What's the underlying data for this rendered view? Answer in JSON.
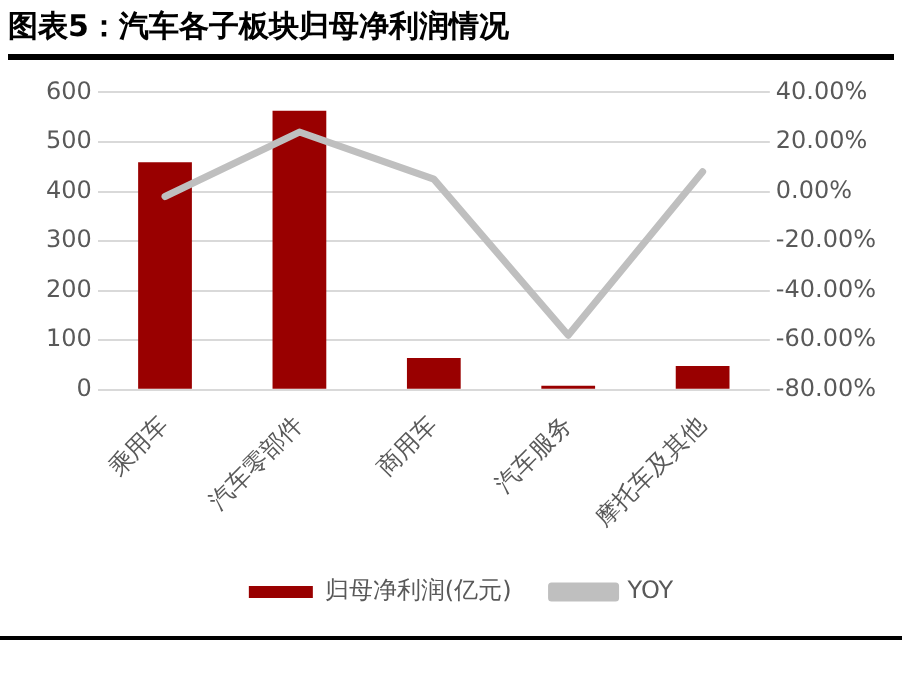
{
  "chart_data": {
    "type": "bar",
    "title": "图表5：汽车各子板块归母净利润情况",
    "categories": [
      "乘用车",
      "汽车零部件",
      "商用车",
      "汽车服务",
      "摩托车及其他"
    ],
    "series": [
      {
        "name": "归母净利润(亿元)",
        "color": "#990000",
        "values": [
          459,
          563,
          64,
          8,
          48
        ]
      },
      {
        "name": "YOY",
        "type": "line",
        "axis": "y2",
        "color": "#bfbfbf",
        "values": [
          -2,
          24,
          5,
          -58,
          8
        ]
      }
    ],
    "ylim": [
      0,
      600
    ],
    "yticks": [
      0,
      100,
      200,
      300,
      400,
      500,
      600
    ],
    "y2lim": [
      -80,
      40
    ],
    "y2ticks": [
      {
        "value": -80,
        "label": "-80.00%"
      },
      {
        "value": -60,
        "label": "-60.00%"
      },
      {
        "value": -40,
        "label": "-40.00%"
      },
      {
        "value": -20,
        "label": "-20.00%"
      },
      {
        "value": 0,
        "label": "0.00%"
      },
      {
        "value": 20,
        "label": "20.00%"
      },
      {
        "value": 40,
        "label": "40.00%"
      }
    ],
    "grid": "y",
    "legend": "bottom",
    "marker": "none"
  }
}
